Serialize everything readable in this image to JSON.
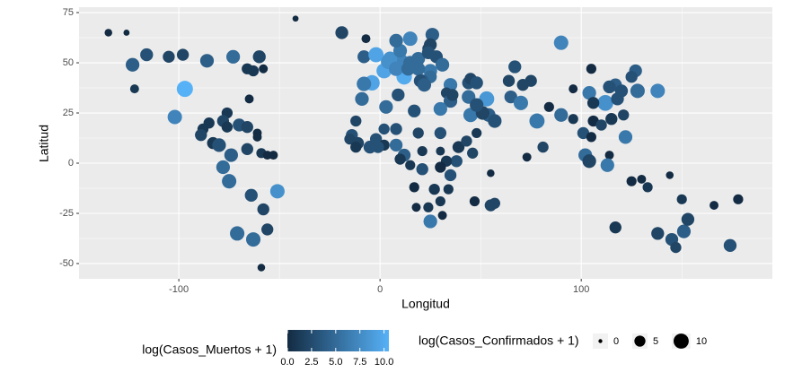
{
  "chart_data": {
    "type": "scatter",
    "xlabel": "Longitud",
    "ylabel": "Latitud",
    "xlim": [
      -149.6,
      195
    ],
    "ylim": [
      -57.6,
      77.7
    ],
    "xticks": [
      -100,
      0,
      100
    ],
    "yticks": [
      75,
      50,
      25,
      0,
      -25,
      -50
    ],
    "grid": true,
    "x": [
      -135,
      -126,
      -123,
      -116,
      -105,
      -98,
      -86,
      -73,
      -60,
      -66,
      -63,
      -58,
      -122,
      -97,
      -102,
      -76,
      -78,
      -85,
      -88,
      -89,
      -83,
      -80,
      -76,
      -70,
      -66,
      -61,
      -61,
      -74,
      -66,
      -59,
      -56,
      -53,
      -78,
      -75,
      -64,
      -58,
      -51,
      -71,
      -63,
      -56,
      -59,
      -65,
      -42,
      -19,
      -7,
      -8,
      -2,
      2,
      -4,
      -8,
      12,
      10,
      5,
      4,
      8,
      14,
      15,
      19,
      10,
      15,
      26,
      8,
      25,
      24,
      24,
      28,
      31,
      25,
      19,
      25,
      21,
      20,
      22,
      35,
      33,
      35,
      36,
      44,
      45,
      48,
      67,
      75,
      64,
      71,
      -9,
      3,
      9,
      17,
      30,
      53,
      44,
      45,
      54,
      51,
      48,
      57,
      48,
      -12,
      -14,
      -15,
      -11,
      -12,
      -5,
      -2,
      2,
      -1,
      2,
      8,
      8,
      12,
      19,
      21,
      30,
      30,
      39,
      43,
      46,
      38,
      33,
      30,
      35,
      10,
      15,
      21,
      17,
      27,
      34,
      30,
      24,
      18,
      25,
      31,
      47,
      55,
      57,
      55,
      65,
      70,
      78,
      84,
      90,
      81,
      73,
      96,
      101,
      105,
      106,
      102,
      104,
      114,
      113,
      122,
      115,
      121,
      128,
      138,
      104,
      112,
      117,
      118,
      110,
      106,
      127,
      125,
      114,
      120,
      96,
      105,
      130,
      125,
      144,
      133,
      117,
      138,
      145,
      147,
      151,
      153,
      150,
      166,
      178,
      174,
      90
    ],
    "y": [
      65,
      65,
      49,
      54,
      53,
      54,
      51,
      53,
      53,
      47,
      46,
      47,
      37,
      37,
      23,
      25,
      21,
      20,
      17,
      14,
      10,
      9,
      18,
      19,
      18,
      15,
      13,
      4,
      7,
      5,
      4,
      4,
      -2,
      -9,
      -16,
      -23,
      -14,
      -35,
      -38,
      -33,
      -52,
      32,
      72,
      65,
      62,
      53,
      54,
      46,
      40,
      39.5,
      43,
      51,
      52,
      50.5,
      47,
      47,
      50,
      52,
      56,
      62,
      64,
      61,
      59,
      57,
      55,
      53,
      49,
      46,
      47,
      43,
      41,
      41,
      39,
      39,
      35,
      31,
      34,
      40,
      42,
      40,
      48,
      41,
      41,
      39,
      32,
      28,
      34,
      26,
      27,
      32,
      33,
      24,
      24,
      25,
      29,
      21,
      15,
      21,
      14,
      12,
      10,
      8,
      8,
      12,
      9,
      8,
      17,
      17,
      9,
      4,
      15,
      6,
      15,
      6,
      8,
      11,
      5,
      1,
      1,
      -2,
      -6,
      2,
      -1,
      -3,
      -12,
      -13,
      -13,
      -19,
      -22,
      -22,
      -29,
      -26,
      -19,
      -21,
      -20,
      -5,
      33,
      30,
      21,
      28,
      24,
      8,
      3,
      22,
      15,
      13,
      21,
      4,
      1,
      4,
      -1,
      13,
      22,
      24,
      36,
      36,
      35,
      30,
      39,
      32,
      19,
      30,
      46,
      43,
      38,
      36,
      37,
      47,
      -8,
      -9,
      -6,
      -12,
      -32,
      -35,
      -38,
      -42,
      -34,
      -28,
      -18,
      -21,
      -18,
      -41,
      60
    ],
    "color_values": [
      0,
      0,
      4,
      3,
      2,
      2,
      4,
      5,
      2,
      1,
      1,
      0,
      1,
      10.5,
      7,
      1,
      2,
      1,
      1,
      2,
      1,
      3,
      1,
      3,
      2,
      0,
      0,
      4,
      2,
      1,
      0,
      0,
      5,
      5,
      3,
      2,
      8,
      5,
      5,
      2,
      0,
      0,
      0,
      2,
      0,
      4,
      9.5,
      9.5,
      9.5,
      6,
      10,
      7,
      8,
      8,
      7,
      5,
      5,
      5,
      6,
      7,
      4,
      5,
      2,
      2,
      3,
      3,
      5,
      6,
      5,
      5,
      4,
      3,
      4,
      6,
      2,
      4,
      2,
      3,
      2,
      3,
      3,
      2,
      2,
      2,
      5,
      5,
      3,
      3,
      6,
      8.5,
      5,
      6,
      4,
      2,
      3,
      3,
      1,
      2,
      3,
      2,
      2,
      1,
      3,
      3,
      1,
      3,
      3,
      3,
      5,
      4,
      2,
      1,
      3,
      1,
      1,
      2,
      2,
      3,
      1,
      0,
      3,
      1,
      1,
      3,
      0,
      1,
      1,
      1,
      1,
      0,
      6,
      0,
      0,
      2,
      2,
      0,
      4,
      6,
      6,
      0,
      5,
      2,
      0,
      1,
      3,
      0,
      0,
      5,
      2,
      0,
      6,
      6,
      1,
      2,
      5,
      7,
      6,
      8,
      4,
      3,
      2,
      1,
      4,
      3,
      3,
      3,
      0,
      0,
      0,
      0,
      0,
      1,
      1,
      2,
      3,
      2,
      4,
      2,
      1,
      0,
      0,
      3,
      7
    ],
    "size_values": [
      2,
      1,
      8,
      7,
      6,
      6,
      8,
      8,
      7,
      5,
      5,
      3,
      3,
      11.5,
      9,
      5,
      6,
      5,
      5,
      6,
      6,
      8,
      5,
      7,
      6,
      3,
      3,
      8,
      6,
      4,
      3,
      3,
      8,
      9,
      7,
      6,
      9,
      9,
      9,
      6,
      2,
      3,
      1,
      7,
      3,
      7,
      10,
      10,
      10.5,
      9,
      10.5,
      10.5,
      9,
      9,
      9,
      8,
      8,
      8,
      8,
      9,
      8,
      8,
      7,
      6,
      7,
      7,
      8,
      8,
      8,
      7,
      7,
      7,
      8,
      8,
      5,
      8,
      6,
      7,
      6,
      7,
      7,
      6,
      6,
      6,
      8,
      8,
      7,
      7,
      8,
      10,
      8,
      9,
      8,
      8,
      8,
      8,
      4,
      5,
      6,
      5,
      6,
      5,
      7,
      6,
      5,
      6,
      5,
      6,
      7,
      7,
      5,
      4,
      6,
      3,
      6,
      5,
      5,
      6,
      5,
      5,
      6,
      5,
      4,
      6,
      4,
      5,
      4,
      4,
      4,
      3,
      8,
      3,
      4,
      6,
      5,
      2,
      7,
      9,
      10,
      4,
      8,
      5,
      3,
      4,
      6,
      4,
      5,
      8,
      8,
      3,
      8,
      8,
      6,
      5,
      9,
      9,
      8,
      11,
      7,
      7,
      5,
      6,
      7,
      6,
      7,
      7,
      3,
      4,
      3,
      4,
      2,
      4,
      6,
      7,
      7,
      5,
      8,
      7,
      4,
      3,
      4,
      7,
      9
    ],
    "color_legend": {
      "title": "log(Casos_Muertos + 1)",
      "low": "#132B43",
      "high": "#56B1F7",
      "ticks": [
        {
          "value": 0,
          "label": "0.0"
        },
        {
          "value": 2.5,
          "label": "2.5"
        },
        {
          "value": 5,
          "label": "5.0"
        },
        {
          "value": 7.5,
          "label": "7.5"
        },
        {
          "value": 10,
          "label": "10.0"
        }
      ]
    },
    "size_legend": {
      "title": "log(Casos_Confirmados + 1)",
      "values": [
        0,
        5,
        10
      ]
    }
  }
}
